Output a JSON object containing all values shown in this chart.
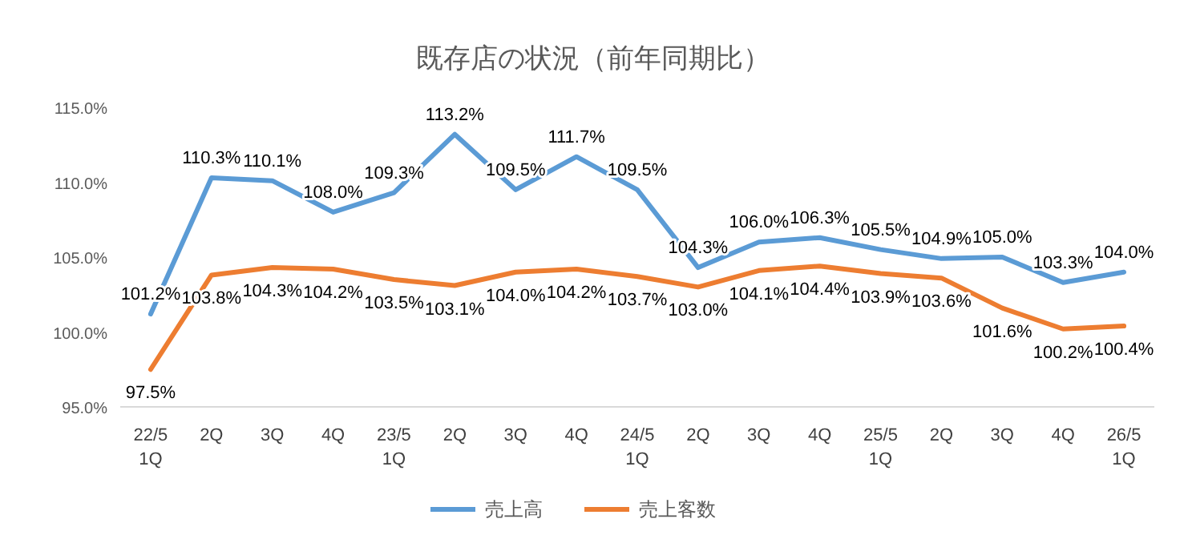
{
  "chart_data": {
    "type": "line",
    "title": "既存店の状況（前年同期比）",
    "categories": [
      "22/5\n1Q",
      "2Q",
      "3Q",
      "4Q",
      "23/5\n1Q",
      "2Q",
      "3Q",
      "4Q",
      "24/5\n1Q",
      "2Q",
      "3Q",
      "4Q",
      "25/5\n1Q",
      "2Q",
      "3Q",
      "4Q",
      "26/5\n1Q"
    ],
    "series": [
      {
        "name": "売上高",
        "color": "#5b9bd5",
        "values": [
          101.2,
          110.3,
          110.1,
          108.0,
          109.3,
          113.2,
          109.5,
          111.7,
          109.5,
          104.3,
          106.0,
          106.3,
          105.5,
          104.9,
          105.0,
          103.3,
          104.0
        ],
        "value_labels": [
          "101.2%",
          "110.3%",
          "110.1%",
          "108.0%",
          "109.3%",
          "113.2%",
          "109.5%",
          "111.7%",
          "109.5%",
          "104.3%",
          "106.0%",
          "106.3%",
          "105.5%",
          "104.9%",
          "105.0%",
          "103.3%",
          "104.0%"
        ]
      },
      {
        "name": "売上客数",
        "color": "#ed7d31",
        "values": [
          97.5,
          103.8,
          104.3,
          104.2,
          103.5,
          103.1,
          104.0,
          104.2,
          103.7,
          103.0,
          104.1,
          104.4,
          103.9,
          103.6,
          101.6,
          100.2,
          100.4
        ],
        "value_labels": [
          "97.5%",
          "103.8%",
          "104.3%",
          "104.2%",
          "103.5%",
          "103.1%",
          "104.0%",
          "104.2%",
          "103.7%",
          "103.0%",
          "104.1%",
          "104.4%",
          "103.9%",
          "103.6%",
          "101.6%",
          "100.2%",
          "100.4%"
        ]
      }
    ],
    "ylim": [
      95,
      115
    ],
    "yticks": [
      {
        "value": 95,
        "label": "95.0%"
      },
      {
        "value": 100,
        "label": "100.0%"
      },
      {
        "value": 105,
        "label": "105.0%"
      },
      {
        "value": 110,
        "label": "110.0%"
      },
      {
        "value": 115,
        "label": "115.0%"
      }
    ],
    "grid": false,
    "legend": "bottom",
    "marker": "none",
    "line_style": "solid"
  }
}
